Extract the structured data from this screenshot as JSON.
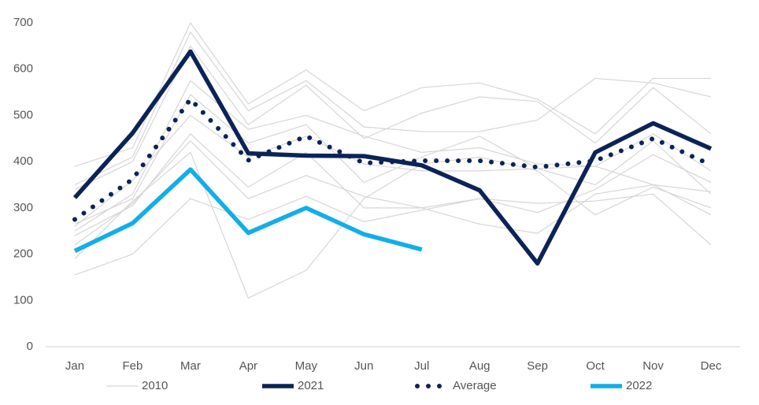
{
  "chart_data": {
    "type": "line",
    "categories": [
      "Jan",
      "Feb",
      "Mar",
      "Apr",
      "May",
      "Jun",
      "Jul",
      "Aug",
      "Sep",
      "Oct",
      "Nov",
      "Dec"
    ],
    "ylim": [
      0,
      700
    ],
    "yticks": [
      0,
      100,
      200,
      300,
      400,
      500,
      600,
      700
    ],
    "series": [
      {
        "name": "2010",
        "color": "#d6d6d6",
        "line_style": "thin",
        "values": [
          155,
          200,
          320,
          275,
          325,
          270,
          295,
          320,
          310,
          315,
          330,
          220
        ]
      },
      {
        "color": "#d6d6d6",
        "line_style": "thin",
        "values": [
          390,
          430,
          700,
          525,
          598,
          510,
          560,
          570,
          535,
          460,
          580,
          580
        ]
      },
      {
        "color": "#d6d6d6",
        "line_style": "thin",
        "values": [
          350,
          410,
          680,
          510,
          575,
          475,
          465,
          465,
          490,
          580,
          570,
          540
        ]
      },
      {
        "color": "#d6d6d6",
        "line_style": "thin",
        "values": [
          340,
          400,
          650,
          480,
          565,
          450,
          505,
          540,
          530,
          440,
          560,
          460
        ]
      },
      {
        "color": "#d6d6d6",
        "line_style": "thin",
        "values": [
          250,
          330,
          575,
          470,
          500,
          455,
          420,
          430,
          395,
          390,
          460,
          380
        ]
      },
      {
        "color": "#d6d6d6",
        "line_style": "thin",
        "values": [
          265,
          320,
          545,
          440,
          480,
          355,
          410,
          455,
          385,
          350,
          445,
          330
        ]
      },
      {
        "color": "#d6d6d6",
        "line_style": "thin",
        "values": [
          240,
          305,
          460,
          345,
          420,
          300,
          300,
          320,
          290,
          340,
          415,
          355
        ]
      },
      {
        "color": "#d6d6d6",
        "line_style": "thin",
        "values": [
          220,
          310,
          445,
          320,
          370,
          325,
          300,
          265,
          245,
          330,
          350,
          285
        ]
      },
      {
        "color": "#d6d6d6",
        "line_style": "thin",
        "values": [
          190,
          315,
          420,
          105,
          165,
          320,
          395,
          410,
          380,
          285,
          345,
          300
        ]
      },
      {
        "color": "#d6d6d6",
        "line_style": "thin",
        "values": [
          260,
          360,
          500,
          410,
          455,
          395,
          380,
          380,
          385,
          390,
          350,
          335
        ]
      },
      {
        "name": "2021",
        "color": "#0c2357",
        "line_style": "solid",
        "values": [
          322,
          462,
          638,
          418,
          413,
          412,
          392,
          338,
          180,
          420,
          483,
          428
        ]
      },
      {
        "name": "Average",
        "color": "#0c2357",
        "line_style": "dotted",
        "values": [
          275,
          362,
          535,
          403,
          455,
          397,
          402,
          402,
          388,
          402,
          450,
          393
        ]
      },
      {
        "name": "2022",
        "color": "#12aee8",
        "line_style": "solid",
        "values": [
          207,
          267,
          383,
          246,
          300,
          243,
          210,
          null,
          null,
          null,
          null,
          null
        ]
      }
    ]
  }
}
